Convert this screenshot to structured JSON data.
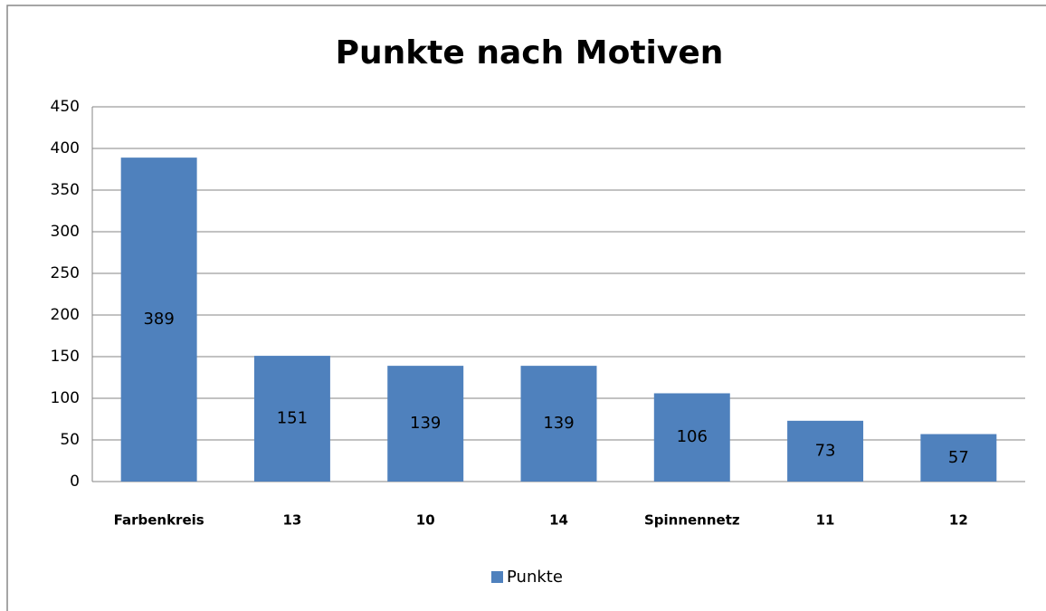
{
  "chart_data": {
    "type": "bar",
    "title": "Punkte nach Motiven",
    "categories": [
      "Farbenkreis",
      "13",
      "10",
      "14",
      "Spinnennetz",
      "11",
      "12"
    ],
    "series": [
      {
        "name": "Punkte",
        "color": "#4f81bd",
        "values": [
          389,
          151,
          139,
          139,
          106,
          73,
          57
        ]
      }
    ],
    "ylim": [
      0,
      450
    ],
    "yticks": [
      0,
      50,
      100,
      150,
      200,
      250,
      300,
      350,
      400,
      450
    ],
    "grid": true,
    "legend": "bottom"
  }
}
